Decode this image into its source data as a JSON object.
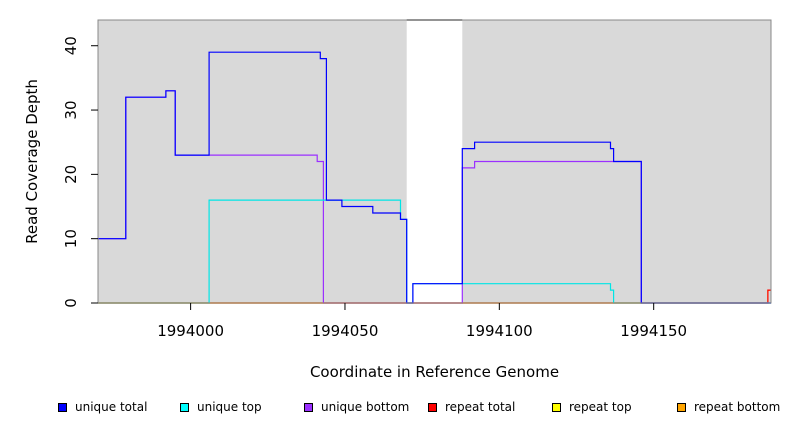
{
  "chart_data": {
    "type": "line",
    "xlabel": "Coordinate in Reference Genome",
    "ylabel": "Read Coverage Depth",
    "xlim": [
      1993970,
      1994188
    ],
    "ylim": [
      0,
      44
    ],
    "x_ticks": [
      1994000,
      1994050,
      1994100,
      1994150
    ],
    "y_ticks": [
      0,
      10,
      20,
      30,
      40
    ],
    "x_tick_labels": [
      "1994000",
      "1994050",
      "1994100",
      "1994150"
    ],
    "y_tick_labels": [
      "0",
      "10",
      "20",
      "30",
      "40"
    ],
    "background": "#d9d9d9",
    "gap_region": [
      1994070,
      1994088
    ],
    "legend_position": "bottom",
    "series": [
      {
        "name": "unique total",
        "color": "#0000ff",
        "x": [
          1993970,
          1993979,
          1993992,
          1993995,
          1994006,
          1994042,
          1994044,
          1994049,
          1994059,
          1994068,
          1994070,
          1994072,
          1994088,
          1994092,
          1994136,
          1994137,
          1994146,
          1994188
        ],
        "y": [
          10,
          32,
          33,
          23,
          39,
          38,
          16,
          15,
          14,
          13,
          0,
          3,
          24,
          25,
          24,
          22,
          0,
          0
        ]
      },
      {
        "name": "unique top",
        "color": "#00e5e5",
        "x": [
          1993970,
          1994006,
          1994044,
          1994068,
          1994070,
          1994072,
          1994088,
          1994136,
          1994137,
          1994188
        ],
        "y": [
          0,
          16,
          16,
          13,
          0,
          3,
          3,
          2,
          0,
          0
        ]
      },
      {
        "name": "unique bottom",
        "color": "#9b30ff",
        "x": [
          1993970,
          1993979,
          1993992,
          1993995,
          1994006,
          1994041,
          1994043,
          1994044,
          1994088,
          1994092,
          1994136,
          1994146,
          1994188
        ],
        "y": [
          10,
          32,
          33,
          23,
          23,
          22,
          0,
          0,
          21,
          22,
          22,
          0,
          0
        ]
      },
      {
        "name": "repeat total",
        "color": "#ff0000",
        "x": [
          1993970,
          1994187,
          1994188
        ],
        "y": [
          0,
          2,
          2
        ]
      },
      {
        "name": "repeat top",
        "color": "#e5e500",
        "x": [
          1993970,
          1994188
        ],
        "y": [
          0,
          0
        ]
      },
      {
        "name": "repeat bottom",
        "color": "#ffa500",
        "x": [
          1993970,
          1994187,
          1994188
        ],
        "y": [
          0,
          2,
          2
        ]
      }
    ]
  },
  "legend": [
    {
      "label": "unique total",
      "color": "#0000ff"
    },
    {
      "label": "unique top",
      "color": "#00ffff"
    },
    {
      "label": "unique bottom",
      "color": "#9b30ff"
    },
    {
      "label": "repeat total",
      "color": "#ff0000"
    },
    {
      "label": "repeat top",
      "color": "#ffff00"
    },
    {
      "label": "repeat bottom",
      "color": "#ffa500"
    }
  ]
}
